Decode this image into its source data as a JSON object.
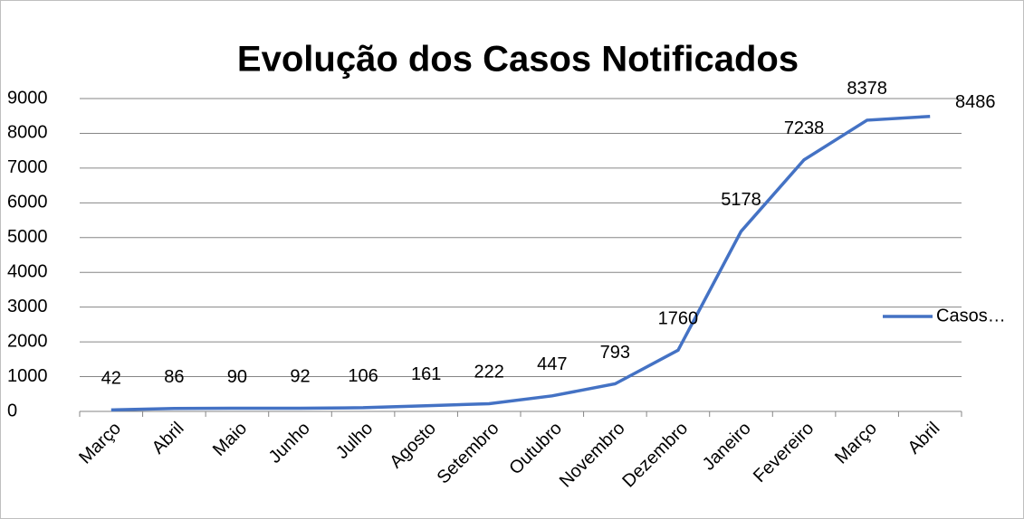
{
  "chart_data": {
    "type": "line",
    "title": "Evolução dos Casos Notificados",
    "categories": [
      "Março",
      "Abril",
      "Maio",
      "Junho",
      "Julho",
      "Agosto",
      "Setembro",
      "Outubro",
      "Novembro",
      "Dezembro",
      "Janeiro",
      "Fevereiro",
      "Março",
      "Abril"
    ],
    "series": [
      {
        "name": "Casos…",
        "color": "#4472c4",
        "values": [
          42,
          86,
          90,
          92,
          106,
          161,
          222,
          447,
          793,
          1760,
          5178,
          7238,
          8378,
          8486
        ]
      }
    ],
    "ylim": [
      0,
      9000
    ],
    "yticks": [
      0,
      1000,
      2000,
      3000,
      4000,
      5000,
      6000,
      7000,
      8000,
      9000
    ],
    "grid": true,
    "legend": "right",
    "data_labels": true
  }
}
